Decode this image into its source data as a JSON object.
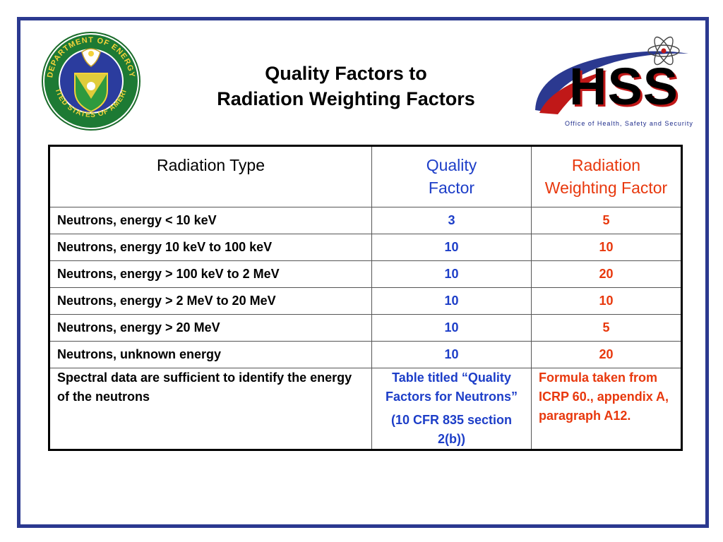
{
  "slide": {
    "title_line1": "Quality Factors  to",
    "title_line2": "Radiation Weighting Factors"
  },
  "seal": {
    "icon": "doe-seal-icon",
    "text": "DEPARTMENT OF ENERGY • UNITED STATES OF AMERICA"
  },
  "hss_logo": {
    "acronym": "HSS",
    "subtitle": "Office of Health, Safety and Security"
  },
  "colors": {
    "frame": "#2b3990",
    "quality_factor": "#1d3ec8",
    "weighting_factor": "#e8380d"
  },
  "table": {
    "headers": {
      "type": "Radiation Type",
      "qf_line1": "Quality",
      "qf_line2": "Factor",
      "rwf_line1": "Radiation",
      "rwf_line2": "Weighting Factor"
    },
    "rows": [
      {
        "type": "Neutrons, energy < 10 keV",
        "qf": "3",
        "rwf": "5"
      },
      {
        "type": "Neutrons, energy 10 keV to 100 keV",
        "qf": "10",
        "rwf": "10"
      },
      {
        "type": "Neutrons, energy > 100 keV to 2 MeV",
        "qf": "10",
        "rwf": "20"
      },
      {
        "type": "Neutrons, energy > 2 MeV to 20 MeV",
        "qf": "10",
        "rwf": "10"
      },
      {
        "type": "Neutrons, energy > 20 MeV",
        "qf": "10",
        "rwf": "5"
      },
      {
        "type": "Neutrons, unknown energy",
        "qf": "10",
        "rwf": "20"
      }
    ],
    "last_row": {
      "type": "Spectral data are sufficient to identify the energy of the neutrons",
      "qf_note1": "Table titled “Quality Factors for Neutrons”",
      "qf_note2": "(10 CFR 835 section 2(b))",
      "rwf_note": "Formula taken from ICRP 60., appendix A, paragraph A12."
    }
  }
}
